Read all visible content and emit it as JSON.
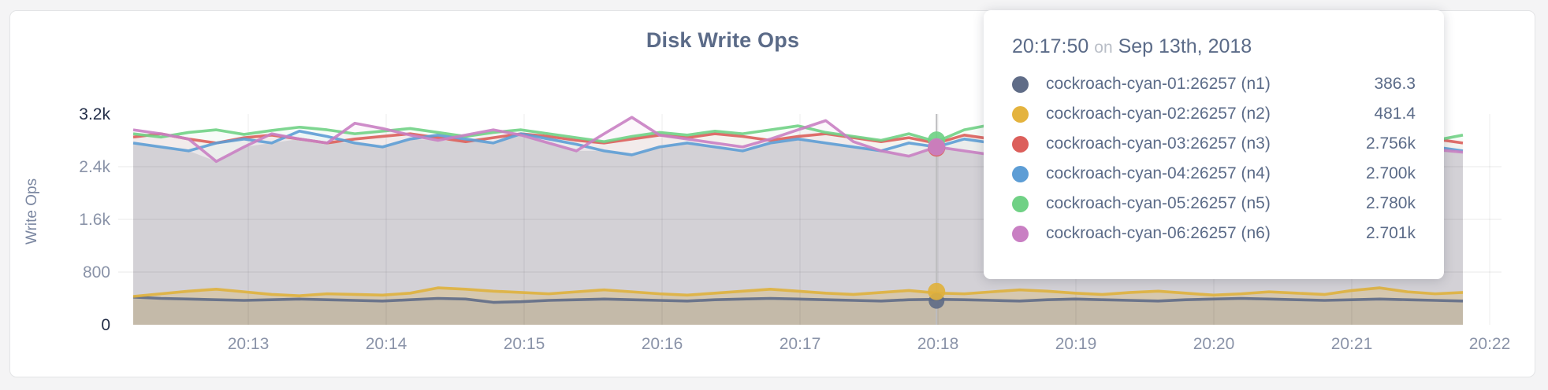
{
  "page": {
    "background": "#f4f4f5"
  },
  "card": {
    "background": "#ffffff",
    "border_color": "#e3e4e6"
  },
  "colors": {
    "title_text": "#5b6b88",
    "axis_text": "#8a93a8",
    "axis_text_strong": "#232e48",
    "grid_line": "rgba(0,0,0,0.055)",
    "hover_guideline": "#bdbdbf",
    "area_gray": "#e4e4e7"
  },
  "chart_data": {
    "type": "line",
    "title": "Disk Write Ops",
    "ylabel": "Write Ops",
    "xlabel": "",
    "ylim": [
      0,
      3200
    ],
    "grid": true,
    "legend_position": "tooltip",
    "y_tick_values": [
      0,
      800,
      1600,
      2400,
      3200
    ],
    "y_tick_labels": [
      "0",
      "800",
      "1.6k",
      "2.4k",
      "3.2k"
    ],
    "x_tick_labels": [
      "20:13",
      "20:14",
      "20:15",
      "20:16",
      "20:17",
      "20:18",
      "20:19",
      "20:20",
      "20:21",
      "20:22"
    ],
    "x_range": [
      "20:12:10",
      "20:21:50"
    ],
    "date": "Sep 13th, 2018",
    "hover": {
      "index": 29,
      "time": "20:17:50"
    },
    "series": [
      {
        "name": "cockroach-cyan-01:26257 (n1)",
        "color": "#5f6c87",
        "group": "bottom",
        "values": [
          420,
          400,
          390,
          380,
          370,
          380,
          390,
          380,
          370,
          360,
          380,
          400,
          390,
          340,
          350,
          370,
          380,
          390,
          380,
          370,
          360,
          380,
          390,
          400,
          390,
          380,
          370,
          360,
          380,
          386,
          380,
          370,
          360,
          380,
          390,
          380,
          370,
          360,
          380,
          390,
          400,
          390,
          380,
          370,
          380,
          390,
          380,
          370,
          360
        ]
      },
      {
        "name": "cockroach-cyan-02:26257 (n2)",
        "color": "#dfb13d",
        "group": "bottom",
        "values": [
          430,
          470,
          510,
          540,
          500,
          460,
          440,
          470,
          460,
          450,
          480,
          560,
          540,
          510,
          490,
          470,
          500,
          530,
          500,
          470,
          450,
          480,
          510,
          540,
          510,
          480,
          460,
          490,
          520,
          481,
          470,
          500,
          530,
          510,
          480,
          460,
          490,
          510,
          480,
          450,
          470,
          500,
          480,
          460,
          520,
          560,
          500,
          470,
          490
        ]
      },
      {
        "name": "cockroach-cyan-03:26257 (n3)",
        "color": "#dc5f5b",
        "group": "top",
        "values": [
          2850,
          2900,
          2820,
          2760,
          2840,
          2880,
          2820,
          2760,
          2820,
          2860,
          2900,
          2840,
          2780,
          2840,
          2900,
          2860,
          2800,
          2760,
          2820,
          2880,
          2840,
          2900,
          2860,
          2800,
          2860,
          2900,
          2840,
          2780,
          2840,
          2756,
          2880,
          2820,
          2760,
          2820,
          2880,
          2840,
          2780,
          2820,
          2760,
          2800,
          2860,
          2800,
          2740,
          2800,
          2860,
          2820,
          2760,
          2820,
          2760
        ]
      },
      {
        "name": "cockroach-cyan-04:26257 (n4)",
        "color": "#5d9dd5",
        "group": "top",
        "values": [
          2760,
          2700,
          2640,
          2760,
          2820,
          2760,
          2940,
          2860,
          2760,
          2700,
          2820,
          2880,
          2820,
          2760,
          2900,
          2820,
          2740,
          2640,
          2580,
          2700,
          2760,
          2700,
          2640,
          2760,
          2820,
          2760,
          2700,
          2640,
          2760,
          2700,
          2820,
          2760,
          2640,
          2700,
          2780,
          2700,
          2620,
          2700,
          2760,
          2820,
          2740,
          2680,
          2760,
          2700,
          2640,
          2720,
          2780,
          2700,
          2640
        ]
      },
      {
        "name": "cockroach-cyan-05:26257 (n5)",
        "color": "#70d185",
        "group": "top",
        "values": [
          2900,
          2850,
          2920,
          2960,
          2890,
          2950,
          3000,
          2960,
          2900,
          2940,
          2980,
          2920,
          2860,
          2920,
          2960,
          2900,
          2840,
          2780,
          2860,
          2920,
          2880,
          2940,
          2900,
          2960,
          3020,
          2920,
          2860,
          2800,
          2900,
          2780,
          2960,
          3040,
          2920,
          2840,
          2780,
          2860,
          2920,
          2860,
          2780,
          2840,
          2900,
          2820,
          2760,
          2840,
          2900,
          2940,
          2860,
          2800,
          2880
        ]
      },
      {
        "name": "cockroach-cyan-06:26257 (n6)",
        "color": "#c97fc3",
        "group": "top",
        "values": [
          2960,
          2900,
          2820,
          2480,
          2700,
          2900,
          2820,
          2760,
          3060,
          2980,
          2880,
          2800,
          2880,
          2960,
          2880,
          2760,
          2640,
          2900,
          3150,
          2880,
          2820,
          2760,
          2700,
          2820,
          2960,
          3100,
          2780,
          2640,
          2560,
          2701,
          2640,
          2580,
          2700,
          2820,
          2760,
          2700,
          2760,
          2960,
          2820,
          2700,
          2620,
          2700,
          3060,
          2940,
          2760,
          2640,
          2580,
          2660,
          2620
        ]
      }
    ]
  },
  "tooltip": {
    "time": "20:17:50",
    "on_word": "on",
    "date": "Sep 13th, 2018",
    "rows": [
      {
        "label": "cockroach-cyan-01:26257 (n1)",
        "value": "386.3",
        "color": "#5f6c87"
      },
      {
        "label": "cockroach-cyan-02:26257 (n2)",
        "value": "481.4",
        "color": "#e4b33e"
      },
      {
        "label": "cockroach-cyan-03:26257 (n3)",
        "value": "2.756k",
        "color": "#dc5f5b"
      },
      {
        "label": "cockroach-cyan-04:26257 (n4)",
        "value": "2.700k",
        "color": "#5d9dd5"
      },
      {
        "label": "cockroach-cyan-05:26257 (n5)",
        "value": "2.780k",
        "color": "#70d185"
      },
      {
        "label": "cockroach-cyan-06:26257 (n6)",
        "value": "2.701k",
        "color": "#c97fc3"
      }
    ]
  }
}
